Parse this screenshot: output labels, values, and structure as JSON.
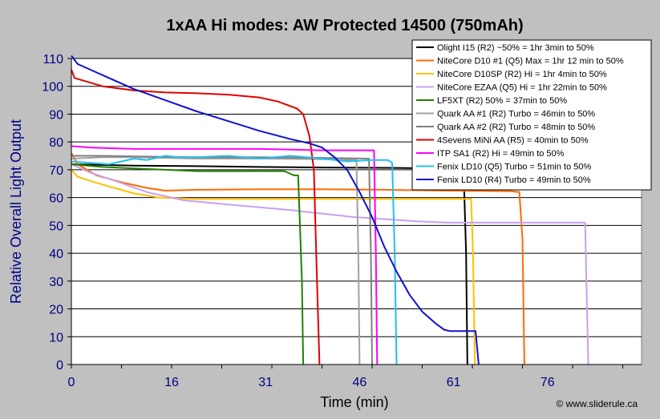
{
  "chart_data": {
    "type": "line",
    "title": "1xAA Hi modes: AW Protected 14500 (750mAh)",
    "xlabel": "Time (min)",
    "ylabel": "Relative Overall Light Output",
    "credit": "© www.sliderule.ca",
    "xlim": [
      0,
      91
    ],
    "ylim": [
      0,
      110
    ],
    "x_ticks": [
      0,
      16,
      31,
      46,
      61,
      76
    ],
    "y_ticks": [
      0,
      10,
      20,
      30,
      40,
      50,
      60,
      70,
      80,
      90,
      100,
      110
    ],
    "grid": "horizontal",
    "legend_position": "top-right",
    "series": [
      {
        "name": "Olight I15 (R2) ~50% = 1hr 3min to 50%",
        "color": "#000000",
        "points": [
          [
            0,
            72
          ],
          [
            10,
            71.5
          ],
          [
            20,
            71.3
          ],
          [
            30,
            71
          ],
          [
            40,
            70.8
          ],
          [
            50,
            70.7
          ],
          [
            61,
            70.5
          ],
          [
            62.6,
            70
          ],
          [
            63,
            40
          ],
          [
            63.2,
            0
          ]
        ]
      },
      {
        "name": "NiteCore D10 #1 (Q5) Max = 1hr 12 min to 50%",
        "color": "#ff6a00",
        "points": [
          [
            0,
            76
          ],
          [
            1,
            72
          ],
          [
            4,
            68
          ],
          [
            8,
            65.5
          ],
          [
            12,
            63.5
          ],
          [
            15,
            62.5
          ],
          [
            20,
            62.8
          ],
          [
            30,
            63
          ],
          [
            40,
            63
          ],
          [
            50,
            62.8
          ],
          [
            60,
            62.5
          ],
          [
            70,
            62.3
          ],
          [
            71.5,
            62
          ],
          [
            72,
            45
          ],
          [
            72.3,
            0
          ]
        ]
      },
      {
        "name": "NiteCore D10SP (R2) Hi = 1hr 4min to 50%",
        "color": "#ffc000",
        "points": [
          [
            0,
            70
          ],
          [
            1,
            67.5
          ],
          [
            3,
            66
          ],
          [
            6,
            64
          ],
          [
            10,
            61.5
          ],
          [
            14,
            60
          ],
          [
            20,
            59.5
          ],
          [
            30,
            59.5
          ],
          [
            40,
            59.5
          ],
          [
            50,
            59.5
          ],
          [
            60,
            59.5
          ],
          [
            63.8,
            59.5
          ],
          [
            64.1,
            40
          ],
          [
            64.4,
            0
          ]
        ]
      },
      {
        "name": "NiteCore EZAA (Q5) Hi = 1hr 22min to 50%",
        "color": "#c8a0f0",
        "points": [
          [
            0,
            72
          ],
          [
            3,
            69
          ],
          [
            7,
            66
          ],
          [
            12,
            62
          ],
          [
            18,
            59
          ],
          [
            25,
            57.5
          ],
          [
            35,
            55.5
          ],
          [
            45,
            53
          ],
          [
            55,
            51.5
          ],
          [
            60,
            51
          ],
          [
            70,
            51
          ],
          [
            82,
            51
          ],
          [
            82.2,
            30
          ],
          [
            82.5,
            0
          ]
        ]
      },
      {
        "name": "LF5XT (R2) 50% = 37min to 50%",
        "color": "#208000",
        "points": [
          [
            0,
            72
          ],
          [
            5,
            71
          ],
          [
            10,
            70.5
          ],
          [
            15,
            70
          ],
          [
            20,
            69.5
          ],
          [
            25,
            69.5
          ],
          [
            30,
            69.5
          ],
          [
            34,
            69.5
          ],
          [
            35.5,
            68
          ],
          [
            36.2,
            68
          ],
          [
            36.8,
            30
          ],
          [
            37,
            0
          ]
        ]
      },
      {
        "name": "Quark AA #1 (R2) Turbo = 46min to 50%",
        "color": "#a0a0a0",
        "points": [
          [
            0,
            74
          ],
          [
            5,
            74.5
          ],
          [
            10,
            74.5
          ],
          [
            20,
            74
          ],
          [
            30,
            74
          ],
          [
            40,
            73.8
          ],
          [
            45.5,
            73.5
          ],
          [
            45.8,
            40
          ],
          [
            46,
            0
          ]
        ]
      },
      {
        "name": "Quark AA #2 (R2) Turbo = 48min to 50%",
        "color": "#808080",
        "points": [
          [
            0,
            75
          ],
          [
            5,
            75
          ],
          [
            10,
            74.8
          ],
          [
            20,
            74.5
          ],
          [
            30,
            74.5
          ],
          [
            40,
            74.3
          ],
          [
            47.5,
            74
          ],
          [
            47.8,
            40
          ],
          [
            48,
            0
          ]
        ]
      },
      {
        "name": "4Sevens MiNi AA (R5) = 40min to 50%",
        "color": "#e00000",
        "points": [
          [
            0,
            106
          ],
          [
            0.5,
            103
          ],
          [
            2,
            102
          ],
          [
            5,
            100
          ],
          [
            10,
            98.5
          ],
          [
            15,
            97.8
          ],
          [
            20,
            97.5
          ],
          [
            25,
            97
          ],
          [
            30,
            96
          ],
          [
            33,
            94.5
          ],
          [
            36,
            92
          ],
          [
            37,
            90
          ],
          [
            38,
            82
          ],
          [
            38.7,
            70
          ],
          [
            39.2,
            30
          ],
          [
            39.6,
            0
          ]
        ]
      },
      {
        "name": "ITP SA1 (R2) Hi = 49min to 50%",
        "color": "#ff00ff",
        "points": [
          [
            0,
            78.5
          ],
          [
            3,
            78
          ],
          [
            10,
            77.5
          ],
          [
            20,
            77.5
          ],
          [
            30,
            77.5
          ],
          [
            40,
            77
          ],
          [
            48.3,
            77
          ],
          [
            48.6,
            40
          ],
          [
            48.8,
            0
          ]
        ]
      },
      {
        "name": "Fenix LD10 (Q5) Turbo = 51min to 50%",
        "color": "#20c0f0",
        "points": [
          [
            0,
            73
          ],
          [
            3,
            72.5
          ],
          [
            6,
            72
          ],
          [
            10,
            74
          ],
          [
            12,
            73.5
          ],
          [
            15,
            75
          ],
          [
            17,
            74.5
          ],
          [
            20,
            74.5
          ],
          [
            25,
            75
          ],
          [
            30,
            74
          ],
          [
            35,
            75
          ],
          [
            40,
            74
          ],
          [
            44,
            73
          ],
          [
            48,
            73.5
          ],
          [
            50.5,
            73.5
          ],
          [
            51.2,
            72.5
          ],
          [
            51.6,
            40
          ],
          [
            51.9,
            0
          ]
        ]
      },
      {
        "name": "Fenix LD10 (R4) Turbo = 49min to 50%",
        "color": "#1010d0",
        "points": [
          [
            0,
            111
          ],
          [
            1,
            108
          ],
          [
            3,
            106
          ],
          [
            6,
            103
          ],
          [
            10,
            99
          ],
          [
            15,
            95
          ],
          [
            20,
            91
          ],
          [
            25,
            87.5
          ],
          [
            30,
            84
          ],
          [
            35,
            81
          ],
          [
            38,
            79.5
          ],
          [
            40,
            78
          ],
          [
            42,
            74.5
          ],
          [
            44,
            70
          ],
          [
            46,
            62
          ],
          [
            48,
            53
          ],
          [
            50,
            42
          ],
          [
            52,
            33
          ],
          [
            54,
            25
          ],
          [
            56,
            19
          ],
          [
            58,
            15
          ],
          [
            59.5,
            12.5
          ],
          [
            60.5,
            12
          ],
          [
            63,
            12
          ],
          [
            64.5,
            12
          ],
          [
            64.8,
            5
          ],
          [
            65,
            0
          ]
        ]
      }
    ]
  }
}
